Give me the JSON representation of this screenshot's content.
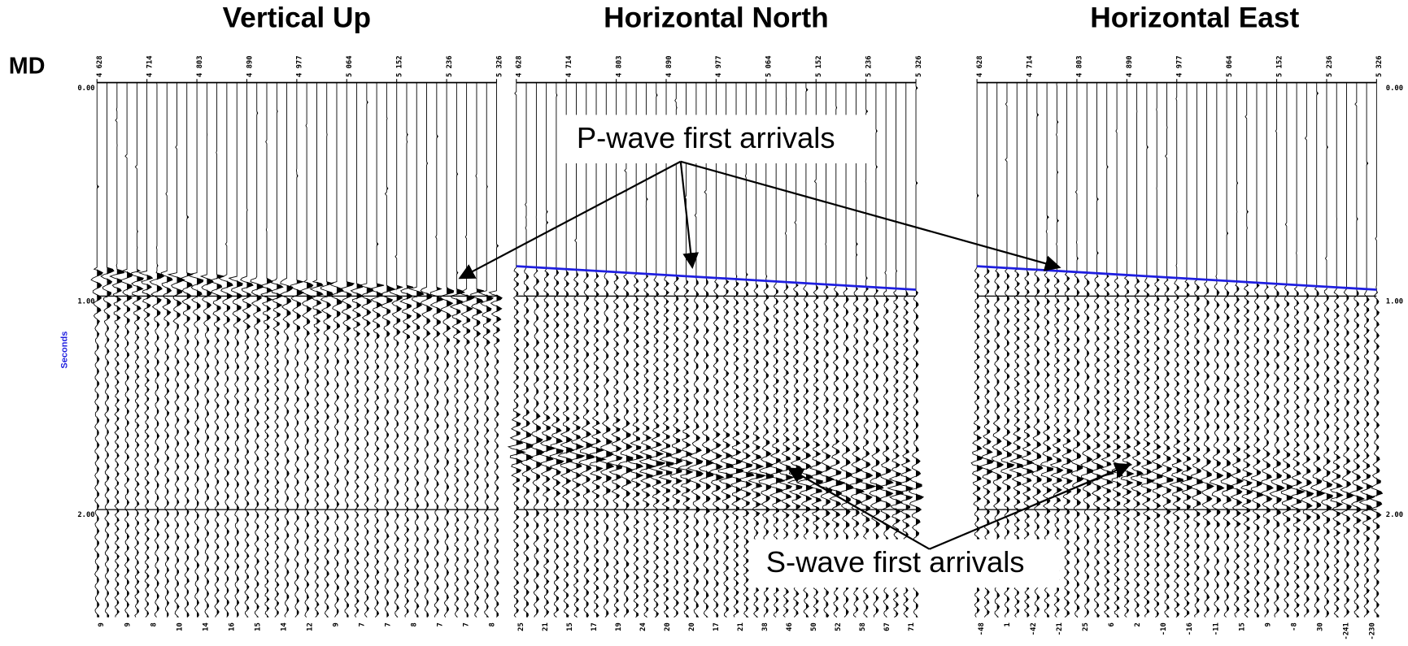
{
  "depth_axis_label": "MD",
  "time_axis_label": "Seconds",
  "time_labels": [
    "0.00",
    "1.00",
    "2.00"
  ],
  "depth_labels": [
    "4 628",
    "4 714",
    "4 803",
    "4 890",
    "4 977",
    "5 064",
    "5 152",
    "5 236",
    "5 326"
  ],
  "panels": [
    {
      "title": "Vertical Up",
      "bottom_labels": [
        "9",
        "9",
        "8",
        "10",
        "14",
        "16",
        "15",
        "14",
        "12",
        "9",
        "7",
        "7",
        "8",
        "7",
        "7",
        "8"
      ]
    },
    {
      "title": "Horizontal North",
      "bottom_labels": [
        "25",
        "21",
        "15",
        "17",
        "19",
        "24",
        "20",
        "20",
        "17",
        "21",
        "38",
        "46",
        "50",
        "52",
        "58",
        "67",
        "71"
      ]
    },
    {
      "title": "Horizontal East",
      "bottom_labels": [
        "-48",
        "1",
        "-42",
        "-21",
        "25",
        "6",
        "2",
        "-10",
        "-16",
        "-11",
        "15",
        "9",
        "-8",
        "30",
        "-241",
        "-230"
      ]
    }
  ],
  "annotations": {
    "p_wave": "P-wave first arrivals",
    "s_wave": "S-wave first arrivals"
  }
}
